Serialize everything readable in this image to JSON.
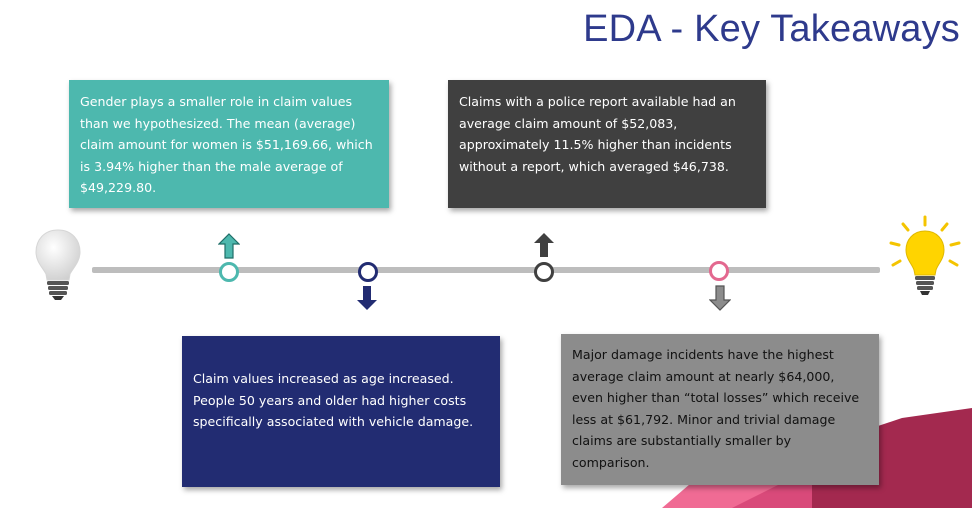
{
  "slide": {
    "title": "EDA - Key Takeaways"
  },
  "takeaways": [
    {
      "text": "Gender plays a smaller role in claim values than we hypothesized. The mean (average) claim amount for women is $51,169.66, which is 3.94% higher than the male average of $49,229.80.",
      "color": "#4db8ae"
    },
    {
      "text": "Claims with a police report available had an average claim amount of $52,083, approximately 11.5% higher than incidents without a report, which averaged $46,738.",
      "color": "#404040"
    },
    {
      "text": "Claim values increased as age increased. People 50 years and older had higher costs specifically associated with vehicle damage.",
      "color": "#222c72"
    },
    {
      "text": "Major damage incidents have the highest average claim amount at nearly $64,000, even higher than “total losses” which receive less at $61,792. Minor and trivial damage claims are substantially smaller by comparison.",
      "color": "#8c8c8c"
    }
  ],
  "icons": {
    "start": "lightbulb-off-icon",
    "end": "lightbulb-on-icon"
  },
  "colors": {
    "title": "#2e3a8c",
    "timeline": "#bdbdbd",
    "accent_pink": "#e3688f",
    "accent_maroon": "#a3294f"
  }
}
